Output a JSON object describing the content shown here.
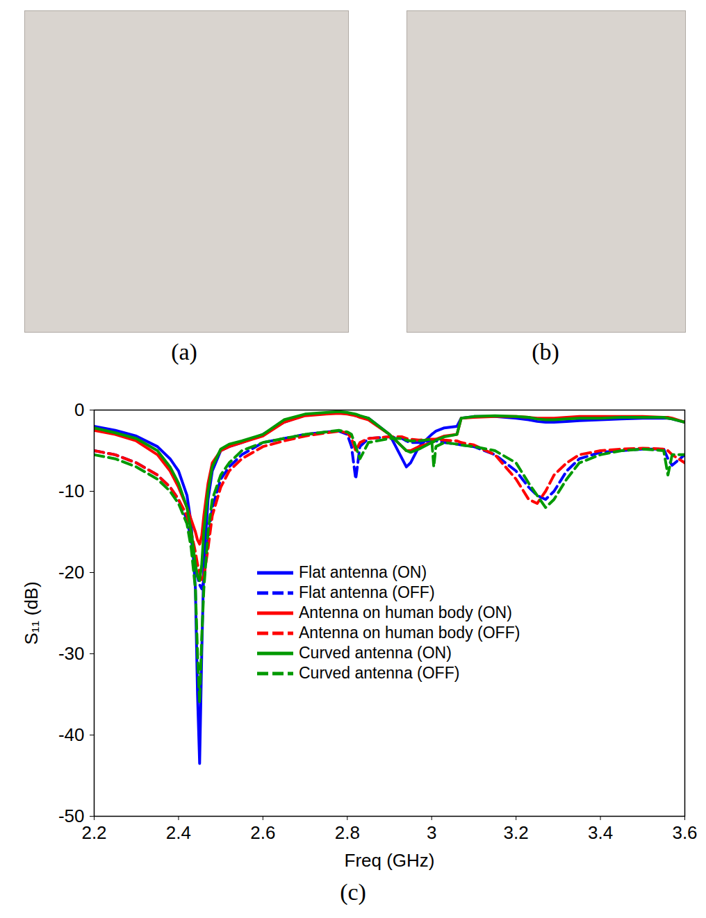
{
  "chart_data": {
    "type": "line",
    "x_label": "Freq (GHz)",
    "y_label": "S₁₁ (dB)",
    "caption": "(c)",
    "x": [
      2.2,
      2.25,
      2.3,
      2.35,
      2.38,
      2.4,
      2.42,
      2.43,
      2.44,
      2.445,
      2.45,
      2.455,
      2.46,
      2.47,
      2.48,
      2.5,
      2.52,
      2.55,
      2.6,
      2.65,
      2.7,
      2.75,
      2.78,
      2.8,
      2.81,
      2.82,
      2.83,
      2.85,
      2.9,
      2.93,
      2.94,
      2.95,
      2.97,
      3.0,
      3.005,
      3.01,
      3.03,
      3.06,
      3.07,
      3.1,
      3.15,
      3.2,
      3.23,
      3.25,
      3.27,
      3.29,
      3.32,
      3.35,
      3.4,
      3.45,
      3.5,
      3.55,
      3.56,
      3.57,
      3.6
    ],
    "series": [
      {
        "name": "Flat antenna (ON)",
        "color": "#0000ff",
        "line_style": "solid",
        "values": [
          -2,
          -2.5,
          -3.2,
          -4.5,
          -6,
          -7.5,
          -10.5,
          -14,
          -22,
          -35,
          -43.5,
          -30,
          -19,
          -11,
          -7.5,
          -5,
          -4.5,
          -4,
          -3,
          -1.5,
          -0.6,
          -0.4,
          -0.3,
          -0.4,
          -0.5,
          -0.7,
          -0.8,
          -1,
          -3,
          -6,
          -7,
          -6.5,
          -4.5,
          -3,
          -2.8,
          -2.6,
          -2.2,
          -2,
          -1,
          -0.8,
          -0.8,
          -1,
          -1.2,
          -1.4,
          -1.5,
          -1.5,
          -1.4,
          -1.3,
          -1.2,
          -1.1,
          -1,
          -1,
          -1,
          -1.1,
          -1.5
        ]
      },
      {
        "name": "Flat antenna (OFF)",
        "color": "#0000ff",
        "line_style": "dashed",
        "values": [
          -5,
          -5.5,
          -6.5,
          -8,
          -9.5,
          -11,
          -13.5,
          -16,
          -19,
          -20.5,
          -21.5,
          -22,
          -21,
          -16,
          -12,
          -8.5,
          -7,
          -5.5,
          -4,
          -3.5,
          -3,
          -2.7,
          -2.6,
          -3,
          -4.5,
          -8.5,
          -4.5,
          -3.5,
          -3.3,
          -3.5,
          -3.8,
          -4,
          -4,
          -3.8,
          -3.8,
          -3.8,
          -4,
          -4.2,
          -4.3,
          -4.5,
          -5.5,
          -7.5,
          -9.5,
          -10.5,
          -11,
          -10,
          -7.5,
          -6,
          -5.2,
          -5,
          -4.8,
          -4.8,
          -6,
          -6.8,
          -5.5
        ]
      },
      {
        "name": "Antenna on human body (ON)",
        "color": "#ff0000",
        "line_style": "solid",
        "values": [
          -2.5,
          -3,
          -3.8,
          -5.5,
          -7.5,
          -9.5,
          -12,
          -13.5,
          -15,
          -16,
          -16.5,
          -15.5,
          -13,
          -9,
          -6.5,
          -5,
          -4.5,
          -4,
          -3.2,
          -1.5,
          -0.7,
          -0.5,
          -0.4,
          -0.5,
          -0.6,
          -0.7,
          -0.9,
          -1.2,
          -3,
          -4.5,
          -5,
          -5,
          -4.5,
          -4,
          -3.8,
          -3.6,
          -3.2,
          -3,
          -1,
          -0.9,
          -0.8,
          -0.8,
          -0.9,
          -1,
          -1,
          -1,
          -0.9,
          -0.8,
          -0.8,
          -0.8,
          -0.8,
          -0.9,
          -0.9,
          -1,
          -1.5
        ]
      },
      {
        "name": "Antenna on human body (OFF)",
        "color": "#ff0000",
        "line_style": "dashed",
        "values": [
          -5,
          -5.5,
          -6.5,
          -8,
          -9.5,
          -11,
          -13,
          -15,
          -17.5,
          -19,
          -20,
          -21,
          -20.5,
          -17,
          -13,
          -9.5,
          -7.5,
          -6,
          -4.5,
          -3.8,
          -3.2,
          -2.8,
          -2.6,
          -2.8,
          -3.5,
          -5,
          -4,
          -3.5,
          -3.3,
          -3.3,
          -3.5,
          -3.6,
          -3.7,
          -3.6,
          -3.6,
          -3.6,
          -3.7,
          -3.8,
          -4,
          -4.3,
          -5.5,
          -8.5,
          -11,
          -11.5,
          -10,
          -8,
          -6.5,
          -5.5,
          -5,
          -4.8,
          -4.7,
          -4.8,
          -5,
          -5.5,
          -6.5
        ]
      },
      {
        "name": "Curved antenna (ON)",
        "color": "#009900",
        "line_style": "solid",
        "values": [
          -2.2,
          -2.8,
          -3.5,
          -5,
          -7,
          -9,
          -12,
          -15,
          -19,
          -20.5,
          -21,
          -19,
          -15,
          -10,
          -7,
          -4.8,
          -4.2,
          -3.8,
          -3,
          -1.2,
          -0.5,
          -0.3,
          -0.2,
          -0.3,
          -0.4,
          -0.5,
          -0.7,
          -1,
          -3,
          -4.5,
          -5,
          -5.2,
          -4.8,
          -4,
          -3.9,
          -3.7,
          -3.3,
          -3,
          -1,
          -0.8,
          -0.7,
          -0.8,
          -0.9,
          -1.1,
          -1.2,
          -1.2,
          -1.1,
          -1,
          -1,
          -0.9,
          -0.9,
          -0.9,
          -1,
          -1.1,
          -1.5
        ]
      },
      {
        "name": "Curved antenna (OFF)",
        "color": "#009900",
        "line_style": "dashed",
        "values": [
          -5.5,
          -6,
          -7,
          -8.5,
          -10,
          -11.5,
          -14,
          -17,
          -22,
          -30,
          -36,
          -28,
          -22,
          -15,
          -11,
          -8,
          -6.5,
          -5,
          -4,
          -3.5,
          -3,
          -2.7,
          -2.5,
          -2.7,
          -3,
          -4.5,
          -6,
          -4,
          -3.5,
          -3.5,
          -3.7,
          -3.8,
          -3.8,
          -3.6,
          -7,
          -4.5,
          -4,
          -4.2,
          -4.3,
          -4.5,
          -5,
          -6.5,
          -9,
          -10.5,
          -12,
          -11,
          -8.5,
          -6.5,
          -5.5,
          -5,
          -4.8,
          -5,
          -8,
          -5.5,
          -5.5
        ]
      }
    ],
    "xlim": [
      2.2,
      3.6
    ],
    "xticks": [
      2.2,
      2.4,
      2.6,
      2.8,
      3,
      3.2,
      3.4,
      3.6
    ],
    "ylim": [
      -50,
      0
    ],
    "yticks": [
      -50,
      -40,
      -30,
      -20,
      -10,
      0
    ],
    "grid": false,
    "legend": "center"
  },
  "photo_labels": [
    "(a)",
    "(b)"
  ]
}
